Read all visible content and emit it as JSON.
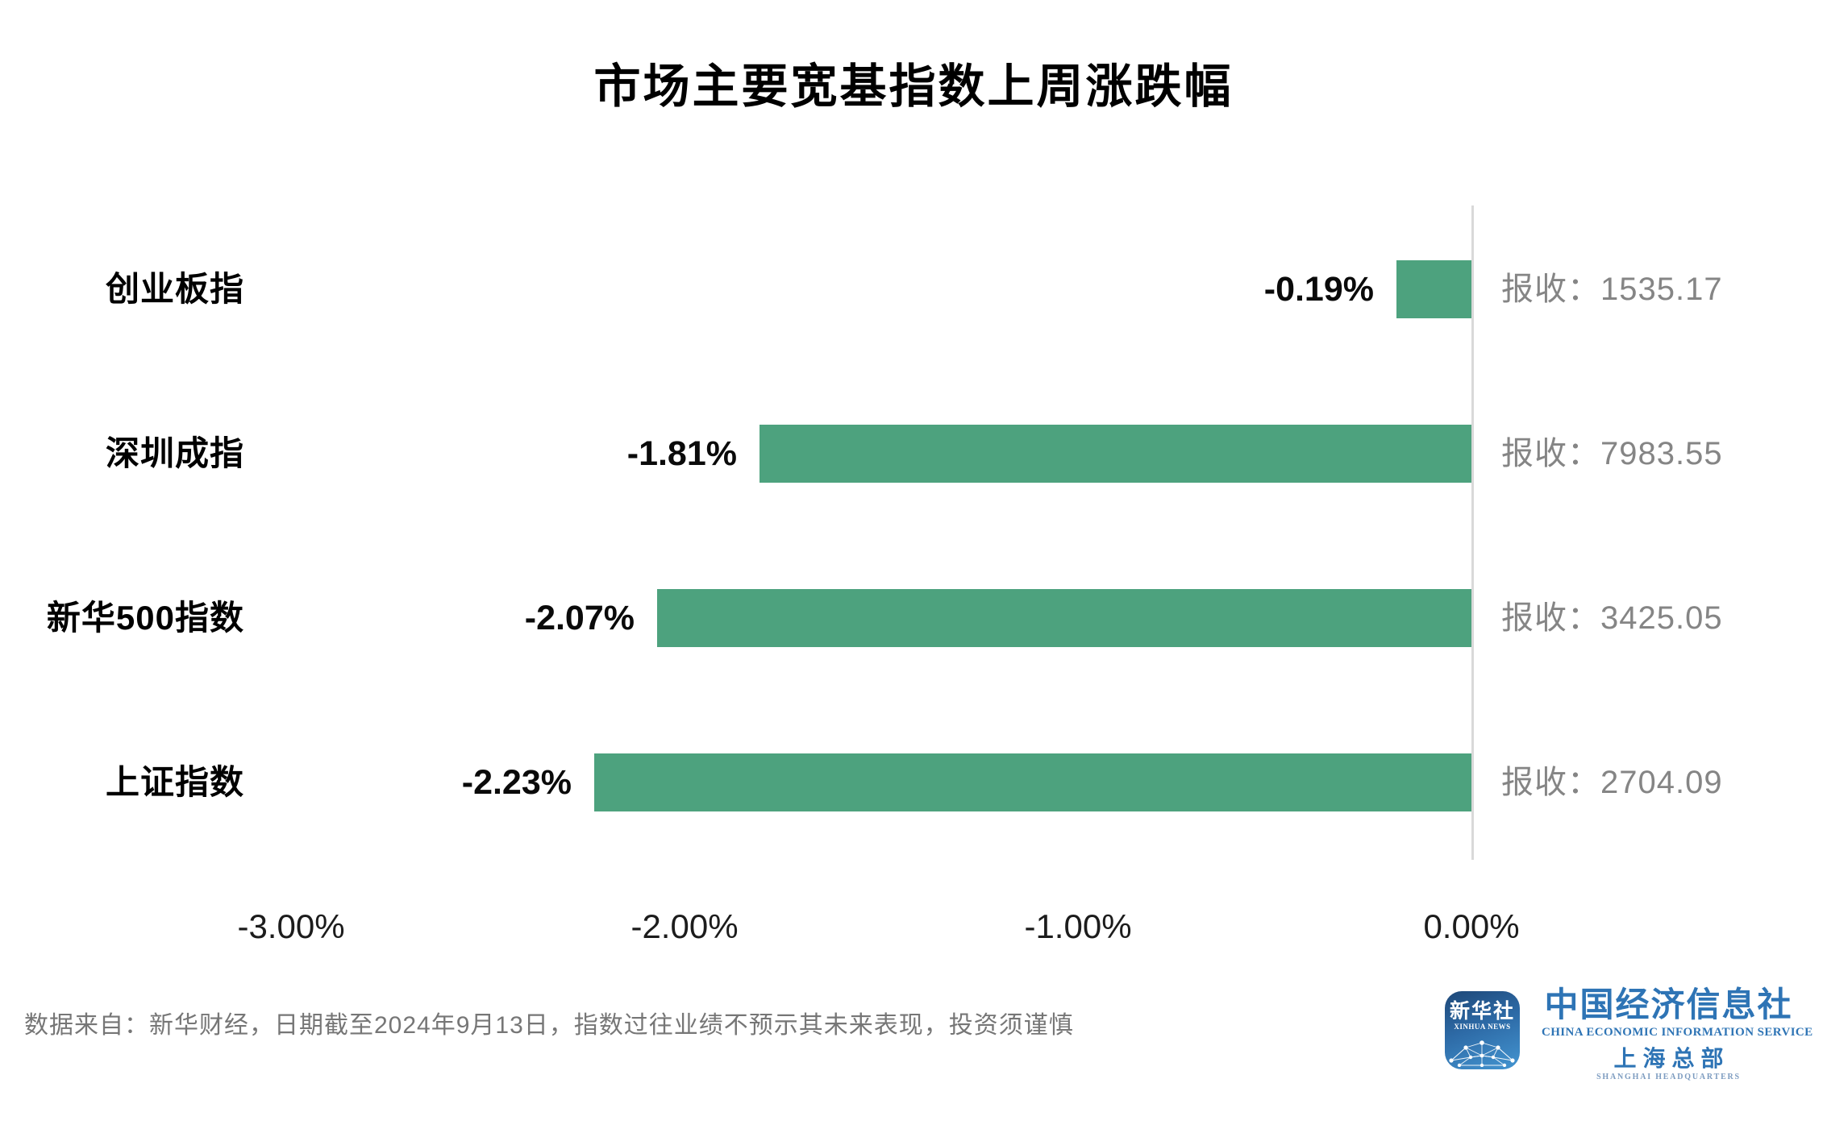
{
  "title": "市场主要宽基指数上周涨跌幅",
  "chart_data": {
    "type": "bar",
    "orientation": "horizontal",
    "categories": [
      "创业板指",
      "深圳成指",
      "新华500指数",
      "上证指数"
    ],
    "values": [
      -0.19,
      -1.81,
      -2.07,
      -2.23
    ],
    "value_labels": [
      "-0.19%",
      "-1.81%",
      "-2.07%",
      "-2.23%"
    ],
    "closes": [
      1535.17,
      7983.55,
      3425.05,
      2704.09
    ],
    "close_labels": [
      "报收：1535.17",
      "报收：7983.55",
      "报收：3425.05",
      "报收：2704.09"
    ],
    "x_ticks": [
      "-3.00%",
      "-2.00%",
      "-1.00%",
      "0.00%"
    ],
    "x_tick_values": [
      -3,
      -2,
      -1,
      0
    ],
    "xlim": [
      -3,
      0
    ],
    "bar_color": "#4da27e",
    "axis_line_color": "#d9d9d9",
    "grid": false,
    "legend": false
  },
  "footer": {
    "note": "数据来自：新华财经，日期截至2024年9月13日，指数过往业绩不预示其未来表现，投资须谨慎"
  },
  "branding": {
    "icon_title": "新华社",
    "icon_subtitle": "XINHUA NEWS",
    "org_cn": "中国经济信息社",
    "org_en": "CHINA ECONOMIC INFORMATION SERVICE",
    "branch_cn": "上海总部",
    "branch_en": "SHANGHAI HEADQUARTERS",
    "brand_blue": "#2e74b5"
  }
}
